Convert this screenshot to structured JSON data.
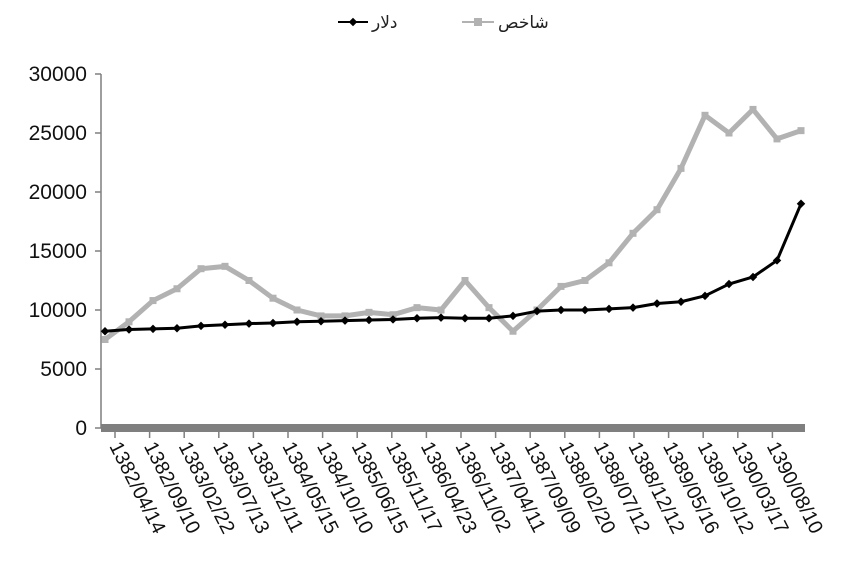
{
  "chart_data": {
    "type": "line",
    "title": "",
    "xlabel": "",
    "ylabel": "",
    "ylim": [
      0,
      30000
    ],
    "yticks": [
      0,
      5000,
      10000,
      15000,
      20000,
      25000,
      30000
    ],
    "ytick_labels": [
      "0",
      "5000",
      "10000",
      "15000",
      "20000",
      "25000",
      "30000"
    ],
    "x_tick_labels": [
      "1382/04/14",
      "1382/09/10",
      "1383/02/22",
      "1383/07/13",
      "1383/12/11",
      "1384/05/15",
      "1384/10/10",
      "1385/06/15",
      "1385/11/17",
      "1386/04/23",
      "1386/11/02",
      "1387/04/11",
      "1387/09/09",
      "1388/02/20",
      "1388/07/12",
      "1388/12/12",
      "1389/05/16",
      "1389/10/12",
      "1390/03/17",
      "1390/08/10"
    ],
    "grid": false,
    "legend_position": "top-center",
    "series": [
      {
        "name": "دلار",
        "color": "#000000",
        "marker": "diamond",
        "values": [
          8200,
          8350,
          8400,
          8450,
          8650,
          8750,
          8850,
          8900,
          9000,
          9050,
          9100,
          9150,
          9200,
          9300,
          9350,
          9300,
          9300,
          9500,
          9900,
          10000,
          10000,
          10100,
          10200,
          10550,
          10700,
          11200,
          12200,
          12800,
          14200,
          19000
        ]
      },
      {
        "name": "شاخص",
        "color": "#b2b2b2",
        "marker": "square",
        "values": [
          7500,
          9000,
          10800,
          11800,
          13500,
          13700,
          12500,
          11000,
          10000,
          9500,
          9500,
          9800,
          9600,
          10200,
          10000,
          12500,
          10200,
          8200,
          10000,
          12000,
          12500,
          14000,
          16500,
          18500,
          22000,
          26500,
          25000,
          27000,
          24500,
          25200
        ]
      }
    ]
  },
  "colors": {
    "axis": "#7f7f7f"
  }
}
